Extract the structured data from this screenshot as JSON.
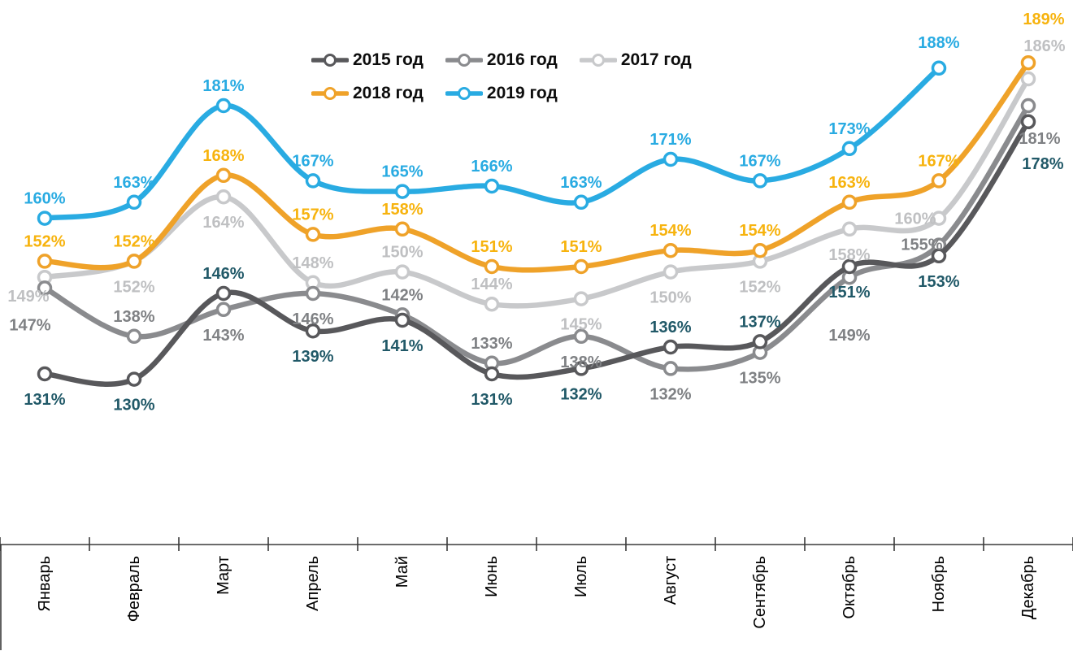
{
  "chart_data": {
    "type": "line",
    "title": "",
    "categories": [
      "Январь",
      "Февраль",
      "Март",
      "Апрель",
      "Май",
      "Июнь",
      "Июль",
      "Август",
      "Сентябрь",
      "Октябрь",
      "Ноябрь",
      "Декабрь"
    ],
    "value_suffix": "%",
    "ylim": [
      125,
      195
    ],
    "grid": false,
    "legend_position": "top",
    "axis_color": "#3a3a3a",
    "series": [
      {
        "name": "2015 год",
        "color": "#58585B",
        "label_color": "#215968",
        "values": [
          131,
          130,
          146,
          139,
          141,
          131,
          132,
          136,
          137,
          151,
          153,
          178
        ],
        "label_pos": [
          "b",
          "b",
          "a",
          "b",
          "b",
          "b",
          "b",
          "a",
          "a",
          "b",
          "b",
          "b"
        ],
        "label_overrides": {
          "11": [
            18,
            58
          ]
        }
      },
      {
        "name": "2016 год",
        "color": "#8A8B8E",
        "label_color": "#7F8184",
        "values": [
          147,
          138,
          143,
          146,
          142,
          133,
          138,
          132,
          135,
          149,
          155,
          181
        ],
        "label_pos": [
          "b",
          "a",
          "b",
          "b",
          "a",
          "a",
          "b",
          "b",
          "b",
          "b",
          "a",
          "b"
        ],
        "label_overrides": {
          "0": [
            -18,
            52
          ],
          "9": [
            0,
            78
          ],
          "10": [
            -21,
            6
          ],
          "11": [
            14,
            47
          ]
        }
      },
      {
        "name": "2017 год",
        "color": "#C8C9CB",
        "label_color": "#BFC0C2",
        "values": [
          149,
          152,
          164,
          148,
          150,
          144,
          145,
          150,
          152,
          158,
          160,
          186
        ],
        "label_pos": [
          "b",
          "b",
          "b",
          "a",
          "a",
          "a",
          "b",
          "b",
          "b",
          "b",
          "a",
          "a"
        ],
        "label_overrides": {
          "0": [
            -20,
            30
          ],
          "10": [
            -29,
            7
          ],
          "11": [
            20,
            -34
          ]
        }
      },
      {
        "name": "2018 год",
        "color": "#EFA229",
        "label_color": "#F7B30E",
        "values": [
          152,
          152,
          168,
          157,
          158,
          151,
          151,
          154,
          154,
          163,
          167,
          189
        ],
        "label_pos": [
          "a",
          "a",
          "a",
          "a",
          "a",
          "a",
          "a",
          "a",
          "a",
          "a",
          "a",
          "a"
        ],
        "label_overrides": {
          "11": [
            19,
            -47
          ]
        }
      },
      {
        "name": "2019 год",
        "color": "#29ABE2",
        "label_color": "#29ABE2",
        "values": [
          160,
          163,
          181,
          167,
          165,
          166,
          163,
          171,
          167,
          173,
          188,
          null
        ],
        "label_pos": [
          "a",
          "a",
          "a",
          "a",
          "a",
          "a",
          "a",
          "a",
          "a",
          "a",
          "a",
          "a"
        ],
        "label_overrides": {
          "10": [
            0,
            -25
          ]
        }
      }
    ],
    "draw_order": [
      2,
      1,
      0,
      3,
      4
    ],
    "legend_rows": [
      [
        0,
        1,
        2
      ],
      [
        3,
        4
      ]
    ]
  }
}
